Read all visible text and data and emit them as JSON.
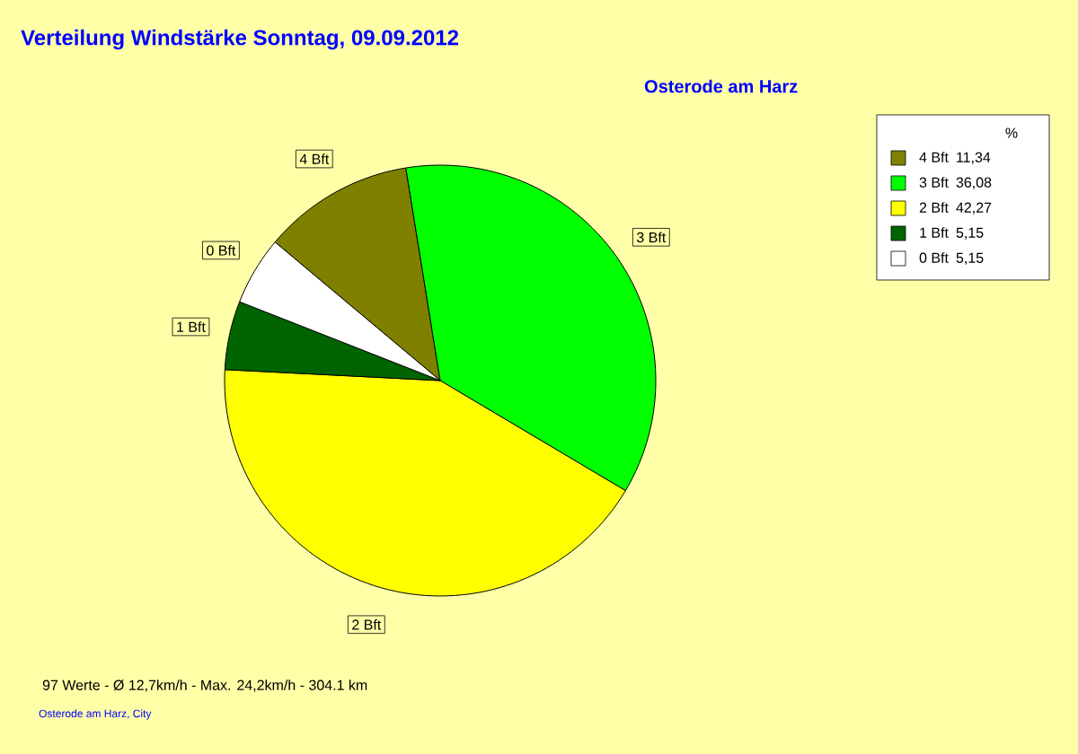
{
  "chart_data": {
    "type": "pie",
    "title": "Verteilung Windstärke  Sonntag, 09.09.2012",
    "subtitle": "Osterode am Harz",
    "legend_title": "%",
    "legend": "top right",
    "categories": [
      "4 Bft",
      "3 Bft",
      "2 Bft",
      "1 Bft",
      "0 Bft"
    ],
    "values": [
      11.34,
      36.08,
      42.27,
      5.15,
      5.15
    ],
    "value_labels": [
      "11,34",
      "36,08",
      "42,27",
      "5,15",
      "5,15"
    ],
    "colors": [
      "#808000",
      "#00ff00",
      "#ffff00",
      "#006400",
      "#ffffff"
    ],
    "annotations": [
      "97 Werte   -   Ø 12,7km/h  -  Max. 24,2km/h  -   304.1 km",
      "Osterode am Harz, City"
    ]
  }
}
